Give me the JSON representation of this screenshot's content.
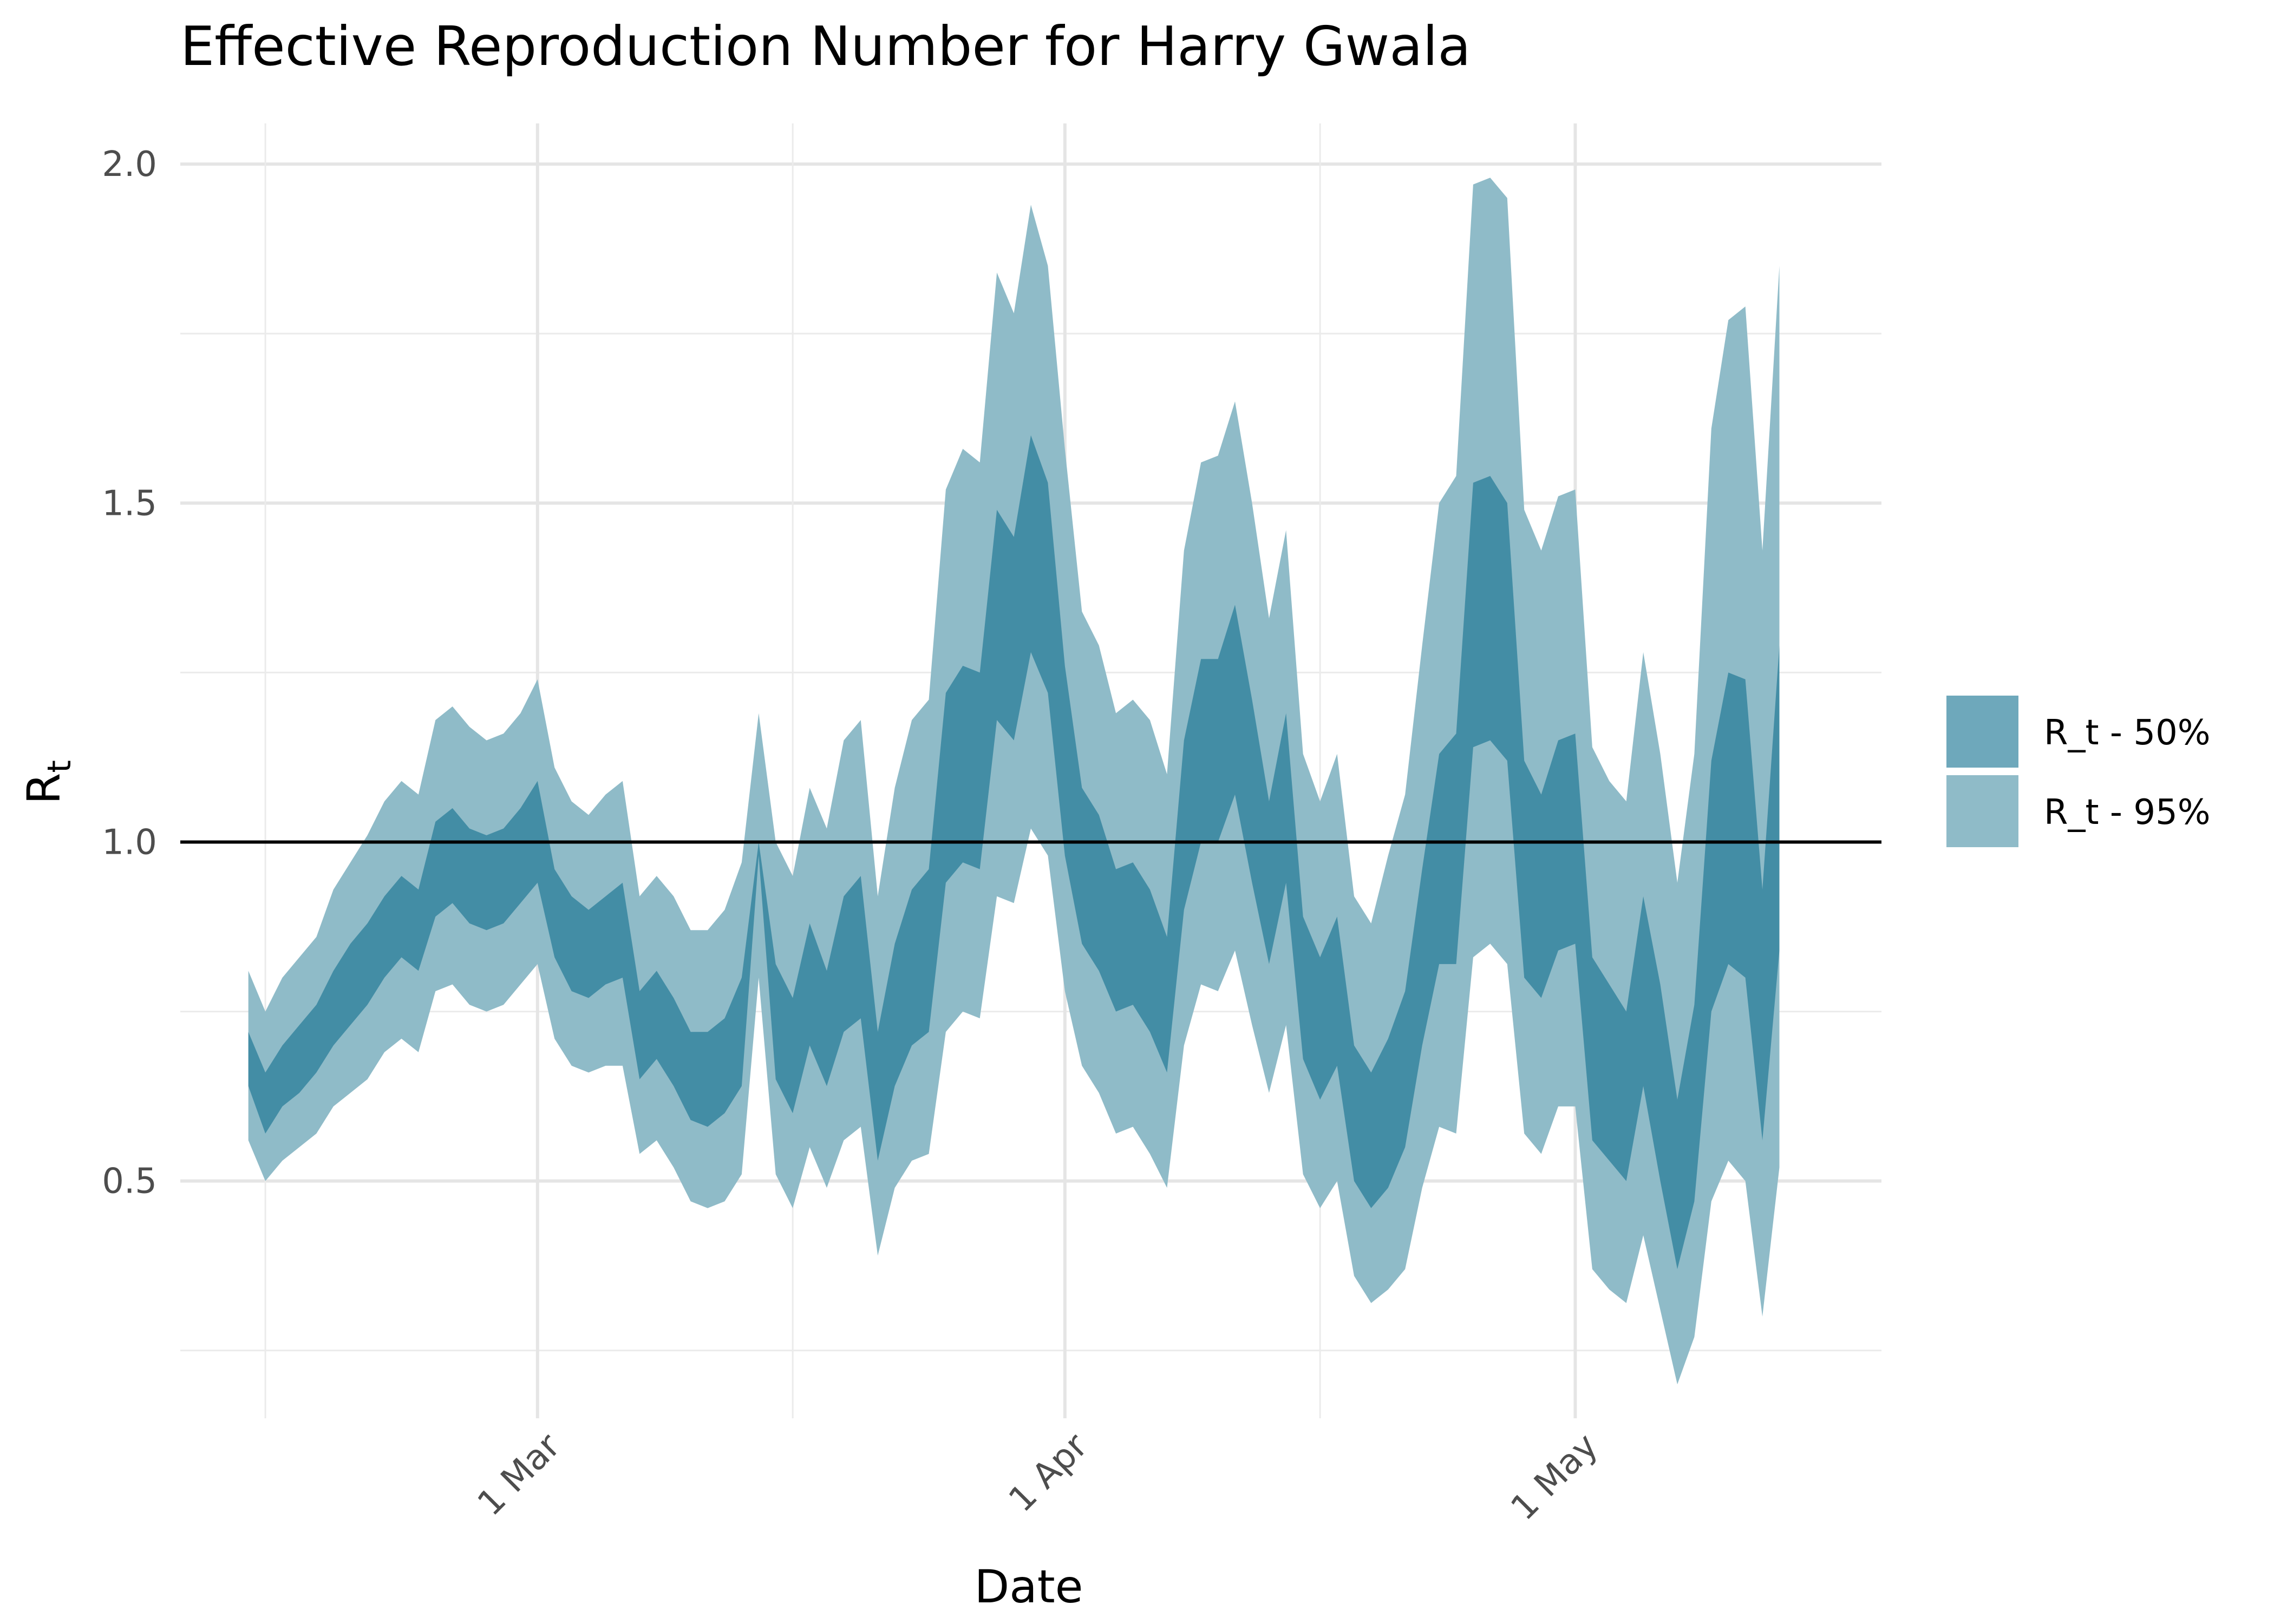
{
  "chart_data": {
    "type": "area",
    "title": "Effective Reproduction Number for Harry Gwala",
    "xlabel": "Date",
    "ylabel": "R",
    "ylabel_sub": "t",
    "x_start": "2021-02-12",
    "x_end": "2021-05-13",
    "xlim": [
      "2021-02-08",
      "2021-05-19"
    ],
    "ylim": [
      0.15,
      2.06
    ],
    "x_ticks": [
      {
        "date": "2021-03-01",
        "label": "1 Mar"
      },
      {
        "date": "2021-04-01",
        "label": "1 Apr"
      },
      {
        "date": "2021-05-01",
        "label": "1 May"
      }
    ],
    "x_minor_dates": [
      "2021-02-13",
      "2021-03-16",
      "2021-04-16"
    ],
    "y_ticks": [
      0.5,
      1.0,
      1.5,
      2.0
    ],
    "y_tick_labels": [
      "0.5",
      "1.0",
      "1.5",
      "2.0"
    ],
    "y_minor": [
      0.25,
      0.75,
      1.25,
      1.75
    ],
    "reference_line": 1.0,
    "grid": true,
    "legend_position": "right",
    "series": [
      {
        "name": "R_t - 95%",
        "color": "#8fbbc8",
        "lower": [
          0.56,
          0.5,
          0.53,
          0.55,
          0.57,
          0.61,
          0.63,
          0.65,
          0.69,
          0.71,
          0.69,
          0.78,
          0.79,
          0.76,
          0.75,
          0.76,
          0.79,
          0.82,
          0.71,
          0.67,
          0.66,
          0.67,
          0.67,
          0.54,
          0.56,
          0.52,
          0.47,
          0.46,
          0.47,
          0.51,
          0.8,
          0.51,
          0.46,
          0.55,
          0.49,
          0.56,
          0.58,
          0.39,
          0.49,
          0.53,
          0.54,
          0.72,
          0.75,
          0.74,
          0.92,
          0.91,
          1.02,
          0.98,
          0.78,
          0.67,
          0.63,
          0.57,
          0.58,
          0.54,
          0.49,
          0.7,
          0.79,
          0.78,
          0.84,
          0.73,
          0.63,
          0.73,
          0.51,
          0.46,
          0.5,
          0.36,
          0.32,
          0.34,
          0.37,
          0.49,
          0.58,
          0.57,
          0.83,
          0.85,
          0.82,
          0.57,
          0.54,
          0.61,
          0.61,
          0.37,
          0.34,
          0.32,
          0.42,
          0.31,
          0.2,
          0.27,
          0.47,
          0.53,
          0.5,
          0.3,
          0.52
        ],
        "upper": [
          0.81,
          0.75,
          0.8,
          0.83,
          0.86,
          0.93,
          0.97,
          1.01,
          1.06,
          1.09,
          1.07,
          1.18,
          1.2,
          1.17,
          1.15,
          1.16,
          1.19,
          1.24,
          1.11,
          1.06,
          1.04,
          1.07,
          1.09,
          0.92,
          0.95,
          0.92,
          0.87,
          0.87,
          0.9,
          0.97,
          1.19,
          1.0,
          0.95,
          1.08,
          1.02,
          1.15,
          1.18,
          0.92,
          1.08,
          1.18,
          1.21,
          1.52,
          1.58,
          1.56,
          1.84,
          1.78,
          1.94,
          1.85,
          1.58,
          1.34,
          1.29,
          1.19,
          1.21,
          1.18,
          1.1,
          1.43,
          1.56,
          1.57,
          1.65,
          1.5,
          1.33,
          1.46,
          1.13,
          1.06,
          1.13,
          0.92,
          0.88,
          0.98,
          1.07,
          1.29,
          1.5,
          1.54,
          1.97,
          1.98,
          1.95,
          1.49,
          1.43,
          1.51,
          1.52,
          1.14,
          1.09,
          1.06,
          1.28,
          1.13,
          0.94,
          1.13,
          1.61,
          1.77,
          1.79,
          1.43,
          1.85
        ]
      },
      {
        "name": "R_t - 50%",
        "color": "#6ea8bb",
        "lower": [
          0.64,
          0.57,
          0.61,
          0.63,
          0.66,
          0.7,
          0.73,
          0.76,
          0.8,
          0.83,
          0.81,
          0.89,
          0.91,
          0.88,
          0.87,
          0.88,
          0.91,
          0.94,
          0.83,
          0.78,
          0.77,
          0.79,
          0.8,
          0.65,
          0.68,
          0.64,
          0.59,
          0.58,
          0.6,
          0.64,
          0.98,
          0.65,
          0.6,
          0.7,
          0.64,
          0.72,
          0.74,
          0.53,
          0.64,
          0.7,
          0.72,
          0.94,
          0.97,
          0.96,
          1.18,
          1.15,
          1.28,
          1.22,
          0.98,
          0.85,
          0.81,
          0.75,
          0.76,
          0.72,
          0.66,
          0.9,
          1.0,
          1.0,
          1.07,
          0.94,
          0.82,
          0.94,
          0.68,
          0.62,
          0.67,
          0.5,
          0.46,
          0.49,
          0.55,
          0.7,
          0.82,
          0.82,
          1.14,
          1.15,
          1.12,
          0.8,
          0.77,
          0.84,
          0.85,
          0.56,
          0.53,
          0.5,
          0.64,
          0.5,
          0.37,
          0.47,
          0.75,
          0.82,
          0.8,
          0.56,
          0.84
        ],
        "upper": [
          0.72,
          0.66,
          0.7,
          0.73,
          0.76,
          0.81,
          0.85,
          0.88,
          0.92,
          0.95,
          0.93,
          1.03,
          1.05,
          1.02,
          1.01,
          1.02,
          1.05,
          1.09,
          0.96,
          0.92,
          0.9,
          0.92,
          0.94,
          0.78,
          0.81,
          0.77,
          0.72,
          0.72,
          0.74,
          0.8,
          1.0,
          0.82,
          0.77,
          0.88,
          0.81,
          0.92,
          0.95,
          0.72,
          0.85,
          0.93,
          0.96,
          1.22,
          1.26,
          1.25,
          1.49,
          1.45,
          1.6,
          1.53,
          1.26,
          1.08,
          1.04,
          0.96,
          0.97,
          0.93,
          0.86,
          1.15,
          1.27,
          1.27,
          1.35,
          1.21,
          1.06,
          1.19,
          0.89,
          0.83,
          0.89,
          0.7,
          0.66,
          0.71,
          0.78,
          0.96,
          1.13,
          1.16,
          1.53,
          1.54,
          1.5,
          1.12,
          1.07,
          1.15,
          1.16,
          0.83,
          0.79,
          0.75,
          0.92,
          0.79,
          0.62,
          0.76,
          1.12,
          1.25,
          1.24,
          0.93,
          1.29
        ]
      }
    ]
  }
}
